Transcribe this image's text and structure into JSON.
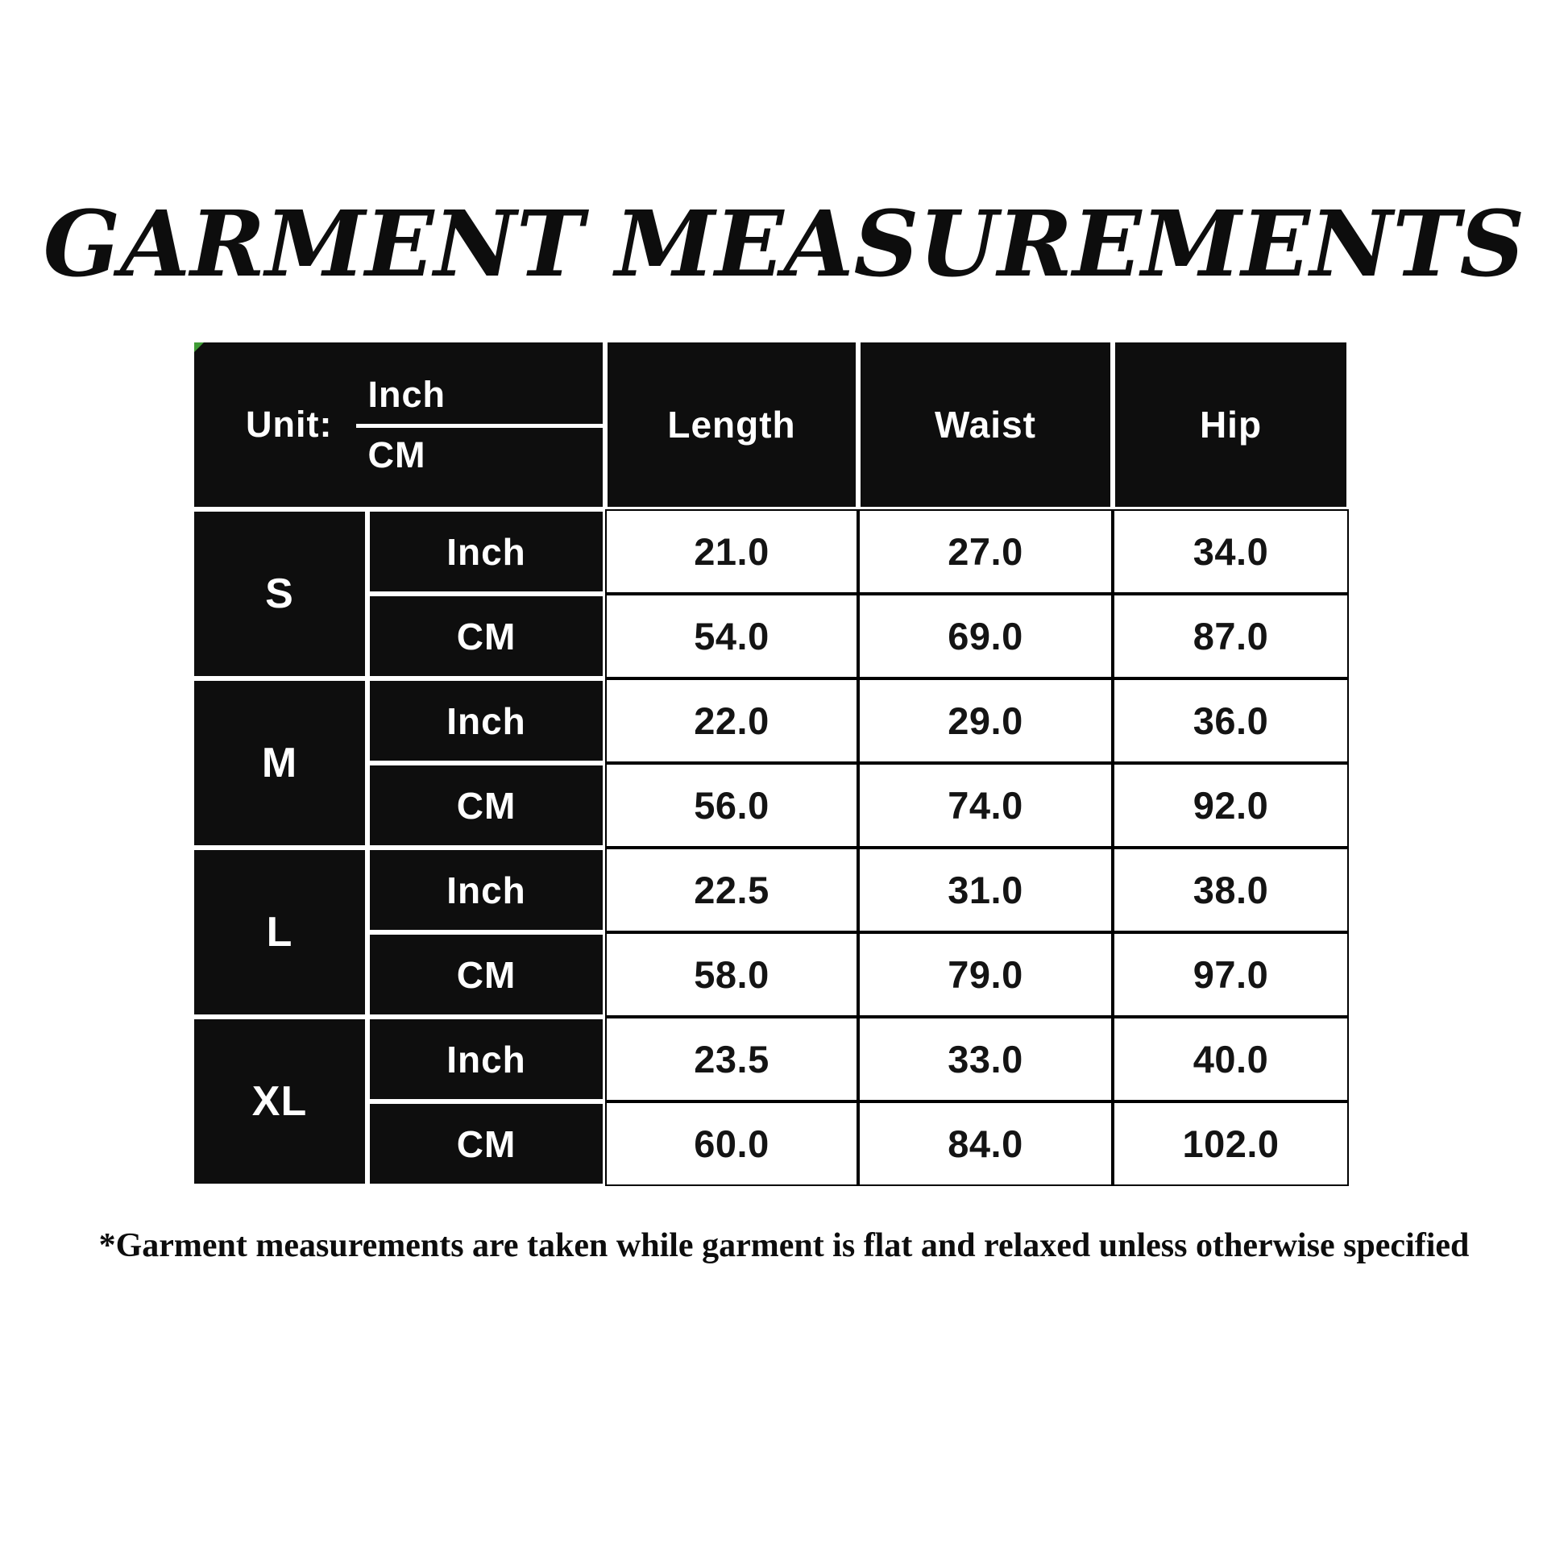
{
  "title": "GARMENT MEASUREMENTS",
  "table": {
    "unit_header": {
      "label": "Unit:",
      "top": "Inch",
      "bottom": "CM"
    },
    "columns": [
      "Length",
      "Waist",
      "Hip"
    ],
    "groups": [
      {
        "size": "S",
        "rows": [
          {
            "unit": "Inch",
            "values": [
              "21.0",
              "27.0",
              "34.0"
            ]
          },
          {
            "unit": "CM",
            "values": [
              "54.0",
              "69.0",
              "87.0"
            ]
          }
        ]
      },
      {
        "size": "M",
        "rows": [
          {
            "unit": "Inch",
            "values": [
              "22.0",
              "29.0",
              "36.0"
            ]
          },
          {
            "unit": "CM",
            "values": [
              "56.0",
              "74.0",
              "92.0"
            ]
          }
        ]
      },
      {
        "size": "L",
        "rows": [
          {
            "unit": "Inch",
            "values": [
              "22.5",
              "31.0",
              "38.0"
            ]
          },
          {
            "unit": "CM",
            "values": [
              "58.0",
              "79.0",
              "97.0"
            ]
          }
        ]
      },
      {
        "size": "XL",
        "rows": [
          {
            "unit": "Inch",
            "values": [
              "23.5",
              "33.0",
              "40.0"
            ]
          },
          {
            "unit": "CM",
            "values": [
              "60.0",
              "84.0",
              "102.0"
            ]
          }
        ]
      }
    ]
  },
  "footnote": "*Garment measurements are taken while garment is flat and relaxed unless otherwise specified",
  "colors": {
    "header_cell_bg": "#0e0e0e",
    "header_cell_text": "#ffffff",
    "value_text": "#141414",
    "corner_marker": "#3f9b35"
  }
}
